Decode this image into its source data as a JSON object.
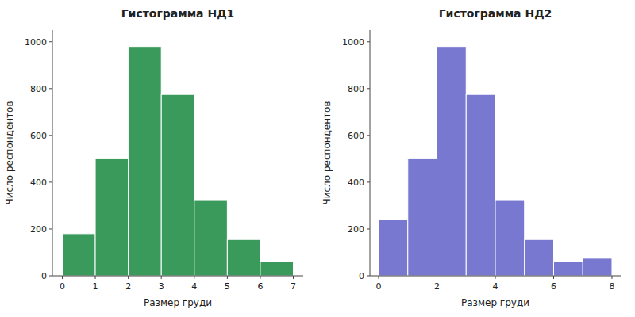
{
  "chart_data": [
    {
      "type": "histogram",
      "title": "Гистограмма НД1",
      "bins": [
        0,
        1,
        2,
        3,
        4,
        5,
        6,
        7
      ],
      "values": [
        180,
        500,
        980,
        775,
        325,
        155,
        60
      ],
      "color": "#3a9a5c",
      "xlabel": "Размер груди",
      "ylabel": "Число респондентов",
      "xlim": [
        -0.3,
        7.3
      ],
      "ylim": [
        0,
        1050
      ],
      "xticks": [
        0,
        1,
        2,
        3,
        4,
        5,
        6,
        7
      ],
      "yticks": [
        0,
        200,
        400,
        600,
        800,
        1000
      ],
      "grid": false
    },
    {
      "type": "histogram",
      "title": "Гистограмма НД2",
      "bins": [
        0,
        1,
        2,
        3,
        4,
        5,
        6,
        7,
        8
      ],
      "values": [
        240,
        500,
        980,
        775,
        325,
        155,
        60,
        75
      ],
      "color": "#7878d0",
      "xlabel": "Размер груди",
      "ylabel": "Число респондентов",
      "xlim": [
        -0.3,
        8.3
      ],
      "ylim": [
        0,
        1050
      ],
      "xticks": [
        0,
        2,
        4,
        6,
        8
      ],
      "yticks": [
        0,
        200,
        400,
        600,
        800,
        1000
      ],
      "grid": false
    }
  ]
}
